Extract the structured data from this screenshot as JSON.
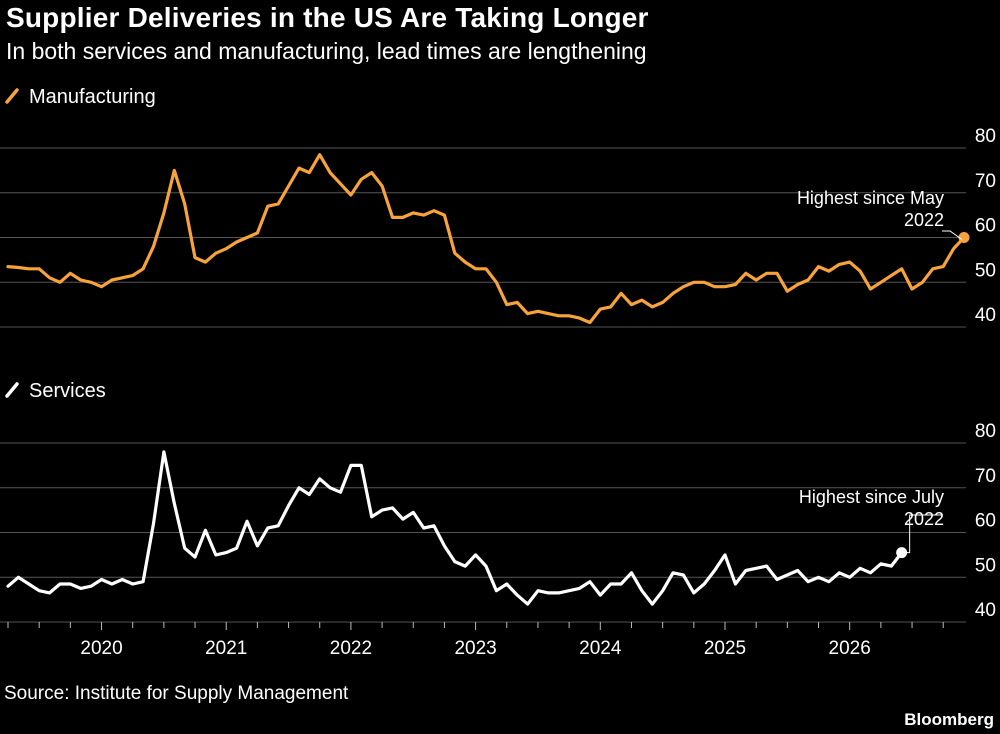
{
  "header": {
    "title": "Supplier Deliveries in the US Are Taking Longer",
    "subtitle": "In both services and manufacturing, lead times are lengthening"
  },
  "footer": {
    "source": "Source: Institute for Supply Management",
    "brand": "Bloomberg"
  },
  "colors": {
    "background": "#000000",
    "manufacturing": "#f7a33a",
    "services": "#ffffff",
    "grid": "#555555"
  },
  "chart_data": [
    {
      "type": "line",
      "series": [
        {
          "name": "Manufacturing",
          "color": "#f7a33a"
        }
      ],
      "yticks": [
        "80",
        "70",
        "60",
        "50",
        "40"
      ],
      "ylim": [
        40,
        80
      ],
      "grid": true,
      "x_start": "2019-04",
      "values": [
        53.5,
        53.3,
        53.0,
        53.0,
        51.0,
        50.0,
        52.0,
        50.5,
        50.0,
        49.0,
        50.5,
        51.0,
        51.5,
        53.0,
        58.0,
        65.5,
        75.0,
        67.5,
        55.5,
        54.5,
        56.5,
        57.5,
        59.0,
        60.0,
        61.0,
        67.0,
        67.5,
        71.5,
        75.5,
        74.5,
        78.5,
        74.5,
        72.0,
        69.5,
        73.0,
        74.5,
        71.5,
        64.5,
        64.5,
        65.5,
        65.0,
        66.0,
        65.0,
        56.5,
        54.5,
        53.0,
        53.0,
        50.0,
        45.0,
        45.5,
        43.0,
        43.5,
        43.0,
        42.5,
        42.5,
        42.0,
        41.0,
        44.0,
        44.5,
        47.5,
        45.0,
        46.0,
        44.5,
        45.5,
        47.5,
        49.0,
        50.0,
        50.0,
        49.0,
        49.0,
        49.5,
        52.0,
        50.5,
        52.0,
        52.0,
        48.0,
        49.5,
        50.5,
        53.5,
        52.5,
        54.0,
        54.5,
        52.5,
        48.5,
        50.0,
        51.5,
        53.0,
        48.5,
        50.0,
        53.0,
        53.5,
        57.5,
        60.0
      ],
      "annotation": {
        "line1": "Highest since May",
        "line2": "2022"
      }
    },
    {
      "type": "line",
      "series": [
        {
          "name": "Services",
          "color": "#ffffff"
        }
      ],
      "yticks": [
        "80",
        "70",
        "60",
        "50",
        "40"
      ],
      "ylim": [
        40,
        80
      ],
      "grid": true,
      "x_start": "2019-04",
      "values": [
        48.0,
        50.0,
        48.5,
        47.0,
        46.5,
        48.5,
        48.5,
        47.5,
        48.0,
        49.5,
        48.5,
        49.5,
        48.5,
        49.0,
        62.0,
        78.0,
        66.5,
        56.5,
        54.5,
        60.5,
        55.0,
        55.5,
        56.5,
        62.5,
        57.0,
        61.0,
        61.5,
        66.0,
        70.0,
        68.5,
        72.0,
        70.0,
        69.0,
        75.0,
        75.0,
        63.5,
        65.0,
        65.5,
        63.0,
        64.5,
        61.0,
        61.5,
        57.0,
        53.5,
        52.5,
        55.0,
        52.5,
        47.0,
        48.5,
        46.0,
        44.0,
        47.0,
        46.5,
        46.5,
        47.0,
        47.5,
        49.0,
        46.0,
        48.5,
        48.5,
        51.0,
        47.0,
        44.0,
        47.0,
        51.0,
        50.5,
        46.5,
        48.5,
        51.5,
        55.0,
        48.5,
        51.5,
        52.0,
        52.5,
        49.5,
        50.5,
        51.5,
        49.0,
        50.0,
        49.0,
        51.0,
        50.0,
        52.0,
        51.0,
        53.0,
        52.5,
        55.5
      ],
      "annotation": {
        "line1": "Highest since July",
        "line2": "2022"
      }
    }
  ],
  "x_axis": {
    "ticks": [
      "2020",
      "2021",
      "2022",
      "2023",
      "2024",
      "2025",
      "2026"
    ]
  }
}
